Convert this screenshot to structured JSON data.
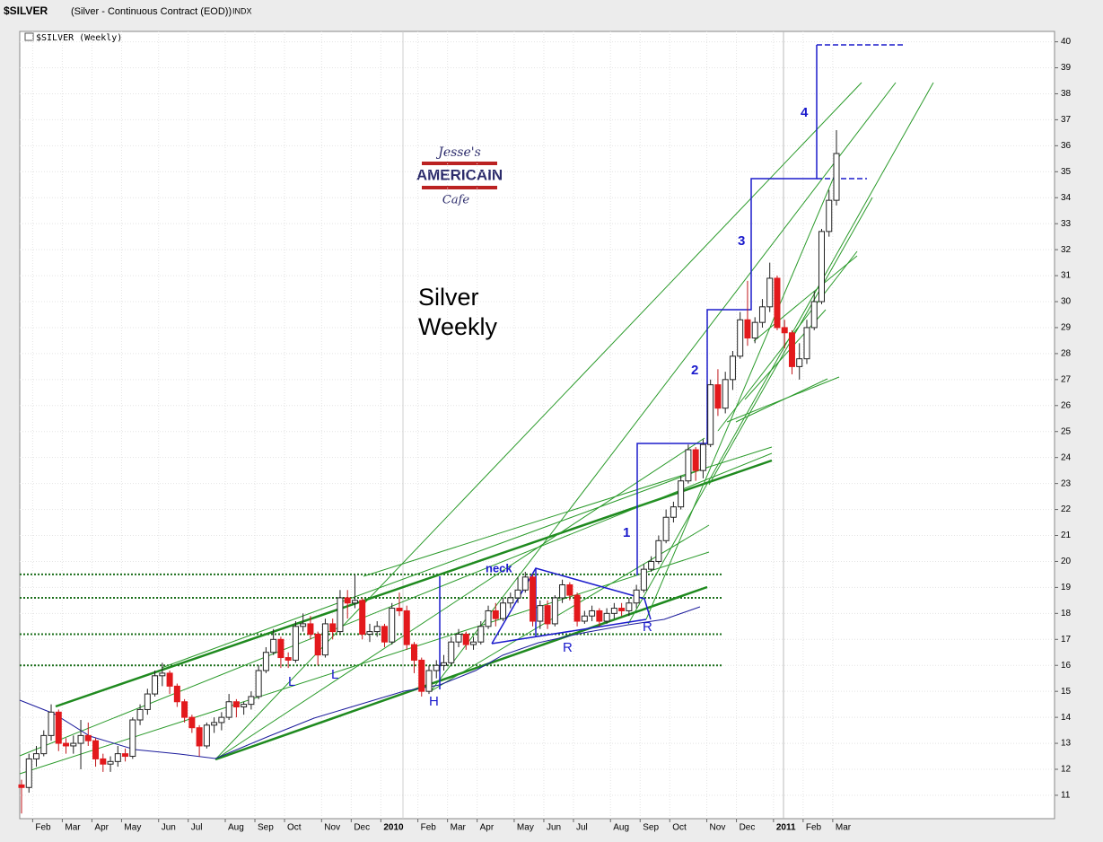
{
  "header": {
    "symbol": "$SILVER",
    "description": "(Silver - Continuous Contract (EOD))",
    "exchange": "INDX"
  },
  "logo": {
    "top": "Jesse's",
    "middle": "AMERICAIN",
    "bottom": "Cafe"
  },
  "chart_data": {
    "type": "candlestick",
    "label": "$SILVER (Weekly)",
    "categories": [
      null,
      null,
      "Feb",
      null,
      null,
      null,
      "Mar",
      null,
      null,
      null,
      "Apr",
      null,
      null,
      null,
      "May",
      null,
      null,
      null,
      null,
      "Jun",
      null,
      null,
      null,
      "Jul",
      null,
      null,
      null,
      null,
      "Aug",
      null,
      null,
      null,
      "Sep",
      null,
      null,
      null,
      "Oct",
      null,
      null,
      null,
      null,
      "Nov",
      null,
      null,
      null,
      "Dec",
      null,
      null,
      null,
      "2010",
      null,
      null,
      null,
      null,
      "Feb",
      null,
      null,
      null,
      "Mar",
      null,
      null,
      null,
      "Apr",
      null,
      null,
      null,
      null,
      "May",
      null,
      null,
      null,
      "Jun",
      null,
      null,
      null,
      "Jul",
      null,
      null,
      null,
      null,
      "Aug",
      null,
      null,
      null,
      "Sep",
      null,
      null,
      null,
      "Oct",
      null,
      null,
      null,
      null,
      "Nov",
      null,
      null,
      null,
      "Dec",
      null,
      null,
      null,
      null,
      "2011",
      null,
      null,
      null,
      "Feb",
      null,
      null,
      null,
      "Mar"
    ],
    "open": [
      11.4,
      11.3,
      12.4,
      12.6,
      13.3,
      14.2,
      13.0,
      12.9,
      13.0,
      13.3,
      13.1,
      12.4,
      12.2,
      12.3,
      12.6,
      12.5,
      13.9,
      14.3,
      14.9,
      15.6,
      15.7,
      15.2,
      14.6,
      14.0,
      13.6,
      12.9,
      13.7,
      13.8,
      14.0,
      14.6,
      14.4,
      14.5,
      14.8,
      15.8,
      16.5,
      17.0,
      16.3,
      16.2,
      17.5,
      17.6,
      17.2,
      16.4,
      17.6,
      17.3,
      18.6,
      18.4,
      18.5,
      17.2,
      17.3,
      17.5,
      16.9,
      18.2,
      18.1,
      16.8,
      16.2,
      15.0,
      15.8,
      16.0,
      16.1,
      16.9,
      17.2,
      16.8,
      16.9,
      17.5,
      18.1,
      17.8,
      18.4,
      18.6,
      18.9,
      19.4,
      17.7,
      18.3,
      17.6,
      18.6,
      19.1,
      18.7,
      17.7,
      17.9,
      18.1,
      17.7,
      18.0,
      18.2,
      18.1,
      18.4,
      18.9,
      19.7,
      20.0,
      20.8,
      21.7,
      22.1,
      23.1,
      24.3,
      23.5,
      24.5,
      26.8,
      25.9,
      27.0,
      27.9,
      29.3,
      28.6,
      29.2,
      29.8,
      30.9,
      29.0,
      28.8,
      27.5,
      27.8,
      29.0,
      30.0,
      32.7,
      33.9
    ],
    "high": [
      11.6,
      12.6,
      12.9,
      13.5,
      14.5,
      14.3,
      13.2,
      13.3,
      13.9,
      13.8,
      13.2,
      12.6,
      12.5,
      12.9,
      12.8,
      14.0,
      14.5,
      15.1,
      15.8,
      16.1,
      15.8,
      15.3,
      14.7,
      14.1,
      13.7,
      13.8,
      14.0,
      14.2,
      14.9,
      14.7,
      14.6,
      15.0,
      16.0,
      16.7,
      17.4,
      17.1,
      16.5,
      17.7,
      18.0,
      17.9,
      17.3,
      17.8,
      17.8,
      18.9,
      18.9,
      19.5,
      18.6,
      17.6,
      17.7,
      17.6,
      18.4,
      18.8,
      18.3,
      16.9,
      16.3,
      16.0,
      16.2,
      16.4,
      17.1,
      17.4,
      17.3,
      17.1,
      17.7,
      18.3,
      18.4,
      18.6,
      18.8,
      19.4,
      19.6,
      19.5,
      18.5,
      18.5,
      18.7,
      19.3,
      19.2,
      18.8,
      18.1,
      18.3,
      18.2,
      18.2,
      18.4,
      18.4,
      18.6,
      19.1,
      19.9,
      20.2,
      21.0,
      22.0,
      22.3,
      23.3,
      24.5,
      24.4,
      24.7,
      27.0,
      27.4,
      27.3,
      28.1,
      29.6,
      30.8,
      29.4,
      30.1,
      31.5,
      31.0,
      29.3,
      28.9,
      28.4,
      29.3,
      30.4,
      32.8,
      34.3,
      36.6
    ],
    "low": [
      10.3,
      11.1,
      12.1,
      12.5,
      13.1,
      12.7,
      12.6,
      12.6,
      12.0,
      12.9,
      12.1,
      11.9,
      11.9,
      12.1,
      12.3,
      12.4,
      13.7,
      14.1,
      14.8,
      15.2,
      14.9,
      14.4,
      13.8,
      13.4,
      12.5,
      12.8,
      13.4,
      13.5,
      13.9,
      14.0,
      14.1,
      14.3,
      14.7,
      15.7,
      16.4,
      15.9,
      15.9,
      16.1,
      17.3,
      17.0,
      16.0,
      16.3,
      17.0,
      17.2,
      17.8,
      18.2,
      17.0,
      16.9,
      17.1,
      16.7,
      16.8,
      17.9,
      16.6,
      15.7,
      14.8,
      14.9,
      15.5,
      15.8,
      16.0,
      16.7,
      16.6,
      16.6,
      16.8,
      17.4,
      17.5,
      17.7,
      18.2,
      18.4,
      18.8,
      17.5,
      17.4,
      17.4,
      17.5,
      18.4,
      18.5,
      17.5,
      17.6,
      17.7,
      17.5,
      17.6,
      17.8,
      17.9,
      17.9,
      18.2,
      18.8,
      19.6,
      19.9,
      20.7,
      21.5,
      22.0,
      23.0,
      23.1,
      23.2,
      24.4,
      25.6,
      25.7,
      26.6,
      27.8,
      28.3,
      28.4,
      29.0,
      29.6,
      28.9,
      28.2,
      27.2,
      27.0,
      27.6,
      28.9,
      29.9,
      32.5,
      33.7
    ],
    "close": [
      11.3,
      12.4,
      12.6,
      13.3,
      14.2,
      13.0,
      12.9,
      13.0,
      13.3,
      13.1,
      12.4,
      12.2,
      12.3,
      12.6,
      12.5,
      13.9,
      14.3,
      14.9,
      15.6,
      15.7,
      15.2,
      14.6,
      14.0,
      13.6,
      12.9,
      13.7,
      13.8,
      14.0,
      14.6,
      14.4,
      14.5,
      14.8,
      15.8,
      16.5,
      17.0,
      16.3,
      16.2,
      17.5,
      17.6,
      17.2,
      16.4,
      17.6,
      17.3,
      18.6,
      18.4,
      18.5,
      17.2,
      17.3,
      17.5,
      16.9,
      18.2,
      18.1,
      16.8,
      16.2,
      15.0,
      15.8,
      16.0,
      16.1,
      16.9,
      17.2,
      16.8,
      16.9,
      17.5,
      18.1,
      17.8,
      18.4,
      18.6,
      18.9,
      19.4,
      17.7,
      18.3,
      17.6,
      18.6,
      19.1,
      18.7,
      17.7,
      17.9,
      18.1,
      17.7,
      18.0,
      18.2,
      18.1,
      18.4,
      18.9,
      19.7,
      20.0,
      20.8,
      21.7,
      22.1,
      23.1,
      24.3,
      23.5,
      24.5,
      26.8,
      25.9,
      27.0,
      27.9,
      29.3,
      28.6,
      29.2,
      29.8,
      30.9,
      29.0,
      28.8,
      27.5,
      27.8,
      29.0,
      30.0,
      32.7,
      33.9,
      35.7
    ],
    "up_color": "#ffffff",
    "down_color": "#e3191c",
    "ylim": [
      10.1,
      40.4
    ],
    "yticks": [
      11,
      12,
      13,
      14,
      15,
      16,
      17,
      18,
      19,
      20,
      21,
      22,
      23,
      24,
      25,
      26,
      27,
      28,
      29,
      30,
      31,
      32,
      33,
      34,
      35,
      36,
      37,
      38,
      39,
      40
    ],
    "grid": true,
    "support_levels": [
      19.5,
      18.6,
      17.2,
      16.0
    ],
    "annotations": {
      "title": [
        "Silver",
        "Weekly"
      ],
      "pattern": [
        "L",
        "L",
        "H",
        "R",
        "R",
        "neck"
      ],
      "legs": [
        "1",
        "2",
        "3",
        "4"
      ]
    }
  }
}
